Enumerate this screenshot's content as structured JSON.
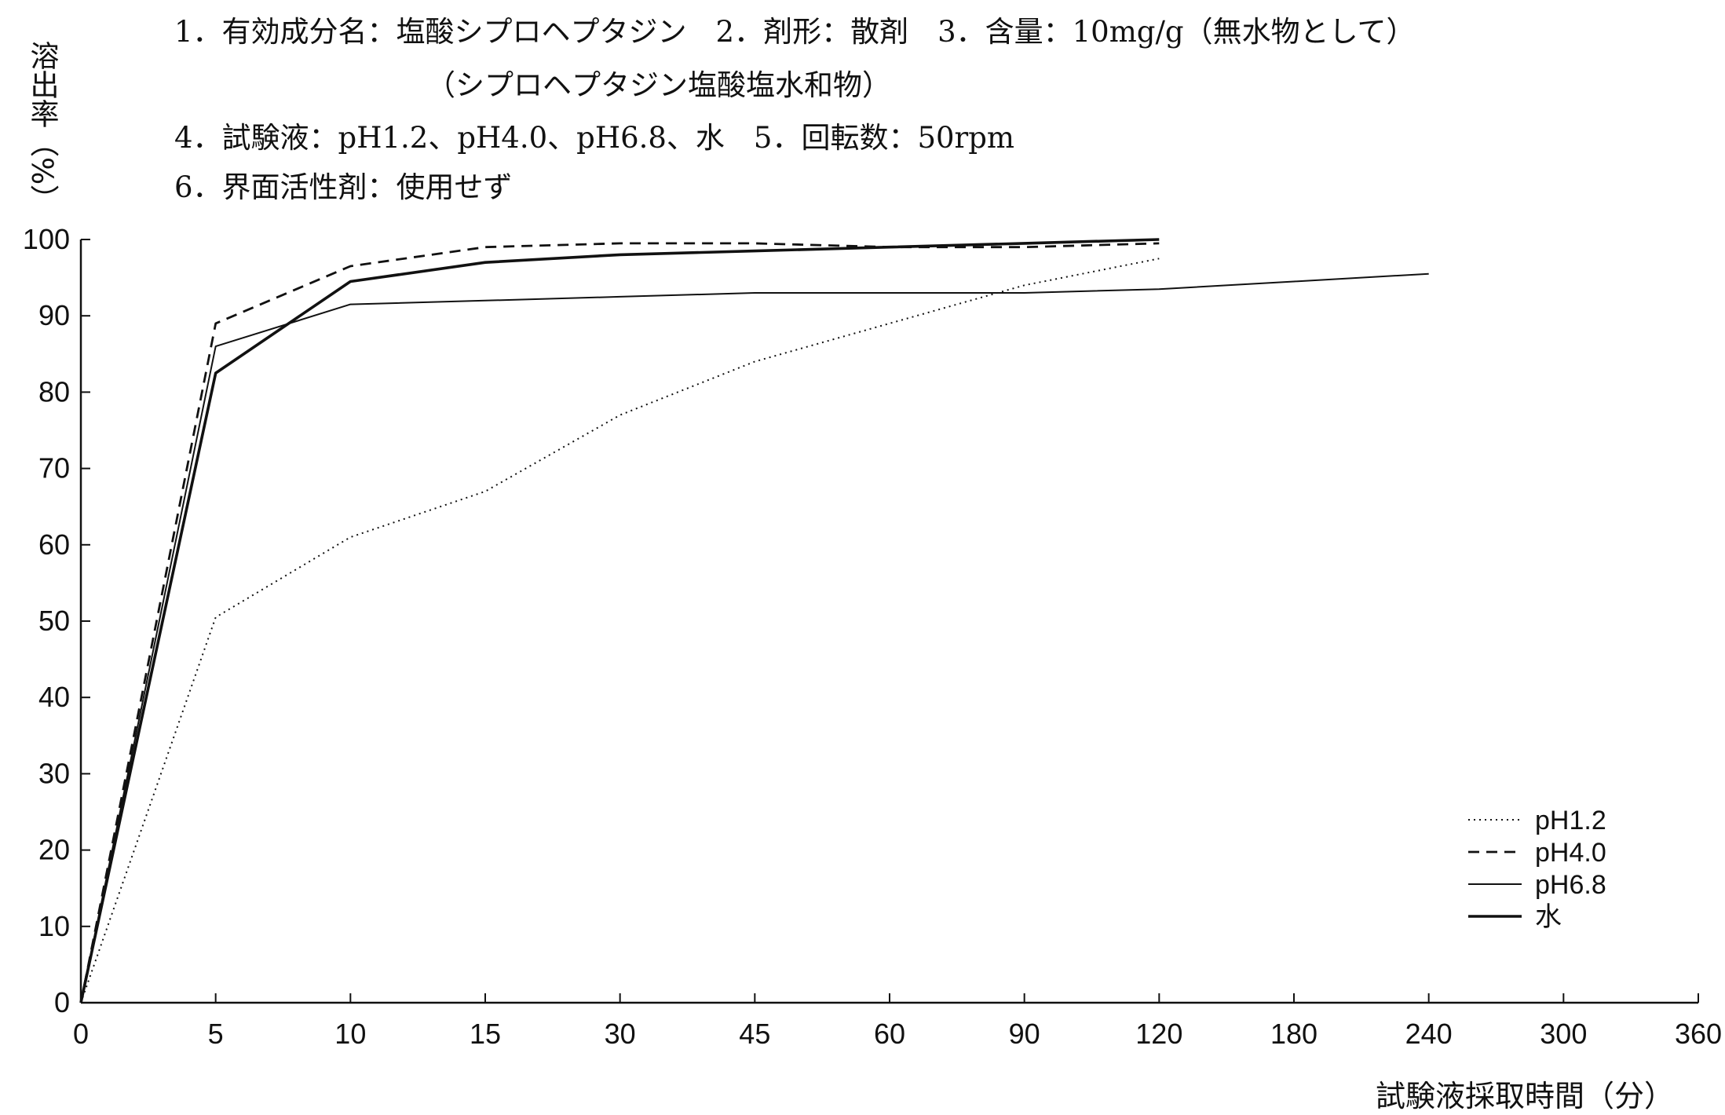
{
  "header": {
    "line1": "1．有効成分名：塩酸シプロヘプタジン　2．剤形：散剤　3．含量：10mg/g（無水物として）",
    "line2": "（シプロヘプタジン塩酸塩水和物）",
    "line3": "4．試験液：pH1.2、pH4.0、pH6.8、水　5．回転数：50rpm",
    "line4": "6．界面活性剤：使用せず"
  },
  "chart_data": {
    "type": "line",
    "xlabel": "試験液採取時間（分）",
    "ylabel": "溶出率（%）",
    "categories": [
      "0",
      "5",
      "10",
      "15",
      "30",
      "45",
      "60",
      "90",
      "120",
      "180",
      "240",
      "300",
      "360"
    ],
    "ylim": [
      0,
      100
    ],
    "yticks": [
      "0",
      "10",
      "20",
      "30",
      "40",
      "50",
      "60",
      "70",
      "80",
      "90",
      "100"
    ],
    "grid": false,
    "legend_position": "bottom-right",
    "series": [
      {
        "name": "pH1.2",
        "style": "dotted",
        "x": [
          "0",
          "5",
          "10",
          "15",
          "30",
          "45",
          "60",
          "90",
          "120"
        ],
        "values": [
          0,
          50.5,
          61,
          67,
          77,
          84,
          89,
          94,
          97.5
        ]
      },
      {
        "name": "pH4.0",
        "style": "dashed",
        "x": [
          "0",
          "5",
          "10",
          "15",
          "30",
          "45",
          "60",
          "90",
          "120"
        ],
        "values": [
          0,
          89,
          96.5,
          99,
          99.5,
          99.5,
          99,
          99,
          99.5
        ]
      },
      {
        "name": "pH6.8",
        "style": "thin",
        "x": [
          "0",
          "5",
          "10",
          "15",
          "30",
          "45",
          "60",
          "90",
          "120",
          "180",
          "240"
        ],
        "values": [
          0,
          86,
          91.5,
          92,
          92.5,
          93,
          93,
          93,
          93.5,
          94.5,
          95.5
        ]
      },
      {
        "name": "水",
        "style": "thick",
        "x": [
          "0",
          "5",
          "10",
          "15",
          "30",
          "45",
          "60",
          "90",
          "120"
        ],
        "values": [
          0,
          82.5,
          94.5,
          97,
          98,
          98.5,
          99,
          99.5,
          100
        ]
      }
    ],
    "colors": {
      "line": "#111111",
      "axis": "#111111"
    }
  }
}
